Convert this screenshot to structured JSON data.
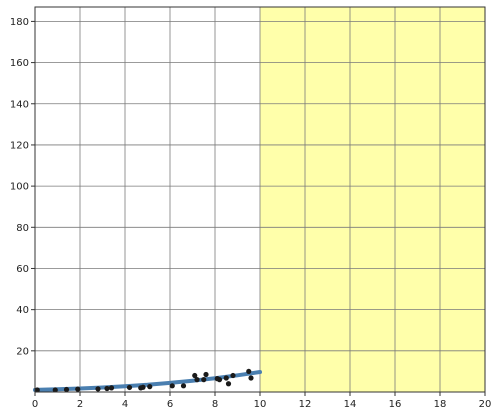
{
  "chart_data": {
    "type": "scatter",
    "title": "",
    "xlabel": "",
    "ylabel": "",
    "xlim": [
      0,
      20
    ],
    "ylim": [
      0,
      187
    ],
    "x_ticks": [
      0,
      2,
      4,
      6,
      8,
      10,
      12,
      14,
      16,
      18,
      20
    ],
    "y_ticks": [
      20,
      40,
      60,
      80,
      100,
      120,
      140,
      160,
      180
    ],
    "grid": true,
    "highlight_region": {
      "x_from": 10,
      "x_to": 20,
      "color": "#ffffaa"
    },
    "series": [
      {
        "type": "scatter",
        "color": "#1a1a1a",
        "points": [
          [
            0.1,
            1.0
          ],
          [
            0.9,
            1.0
          ],
          [
            1.4,
            1.2
          ],
          [
            1.9,
            1.4
          ],
          [
            2.8,
            1.5
          ],
          [
            3.2,
            1.7
          ],
          [
            3.4,
            2.0
          ],
          [
            4.2,
            2.2
          ],
          [
            4.7,
            2.0
          ],
          [
            4.8,
            2.3
          ],
          [
            5.1,
            2.6
          ],
          [
            6.1,
            3.0
          ],
          [
            6.6,
            3.0
          ],
          [
            7.1,
            8.0
          ],
          [
            7.2,
            6.0
          ],
          [
            7.5,
            6.0
          ],
          [
            7.6,
            8.5
          ],
          [
            8.1,
            6.5
          ],
          [
            8.2,
            6.0
          ],
          [
            8.5,
            6.8
          ],
          [
            8.6,
            4.0
          ],
          [
            8.8,
            8.0
          ],
          [
            9.5,
            10.0
          ],
          [
            9.6,
            6.8
          ]
        ]
      },
      {
        "type": "line",
        "color": "#4a7fb0",
        "x": [
          0,
          1,
          2,
          3,
          4,
          5,
          6,
          7,
          8,
          9,
          10
        ],
        "y": [
          1.0,
          1.3,
          1.7,
          2.2,
          2.8,
          3.5,
          4.4,
          5.5,
          6.7,
          8.1,
          9.7
        ]
      }
    ]
  }
}
